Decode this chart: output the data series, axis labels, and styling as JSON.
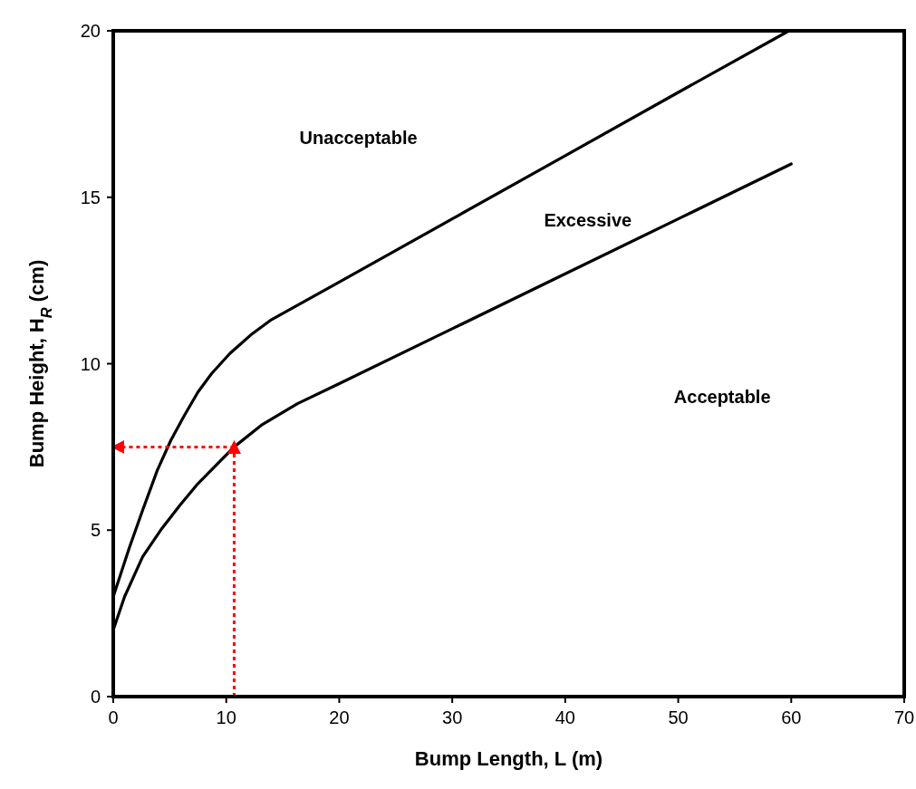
{
  "chart_data": {
    "type": "line",
    "xlabel": "Bump Length, L (m)",
    "ylabel": "Bump Height, H$_{R}$ (cm)",
    "xlim": [
      0,
      70
    ],
    "xticks": [
      0,
      10,
      20,
      30,
      40,
      50,
      60,
      70
    ],
    "ylim": [
      0,
      20
    ],
    "yticks": [
      0,
      5,
      10,
      15,
      20
    ],
    "grid": false,
    "marker": "none",
    "series": [
      {
        "color": "#000000",
        "line_style": "solid",
        "x": [
          0,
          1.4,
          2.6,
          3.9,
          5.1,
          6.3,
          7.5,
          8.7,
          10.3,
          12.3,
          13.9,
          20,
          30,
          40,
          50,
          59.8
        ],
        "values": [
          3,
          4.45,
          5.6,
          6.8,
          7.7,
          8.45,
          9.15,
          9.7,
          10.3,
          10.9,
          11.3,
          12.45,
          14.35,
          16.25,
          18.15,
          20
        ]
      },
      {
        "color": "#000000",
        "line_style": "solid",
        "x": [
          0,
          1,
          2.6,
          4.3,
          5.9,
          7.5,
          9.1,
          10.7,
          13.1,
          16.3,
          20,
          30,
          40,
          50,
          60
        ],
        "values": [
          2,
          3,
          4.2,
          5.05,
          5.75,
          6.4,
          6.95,
          7.5,
          8.15,
          8.8,
          9.4,
          11.05,
          12.7,
          14.35,
          16
        ]
      },
      {
        "color": "#ff0000",
        "line_style": "dotted",
        "x": [
          10.7,
          10.7
        ],
        "values": [
          0,
          7.5
        ]
      },
      {
        "color": "#ff0000",
        "line_style": "dotted",
        "x": [
          10.7,
          0.4
        ],
        "values": [
          7.5,
          7.5
        ]
      }
    ],
    "annotations": [
      "Unacceptable",
      "Excessive",
      "Acceptable"
    ]
  }
}
